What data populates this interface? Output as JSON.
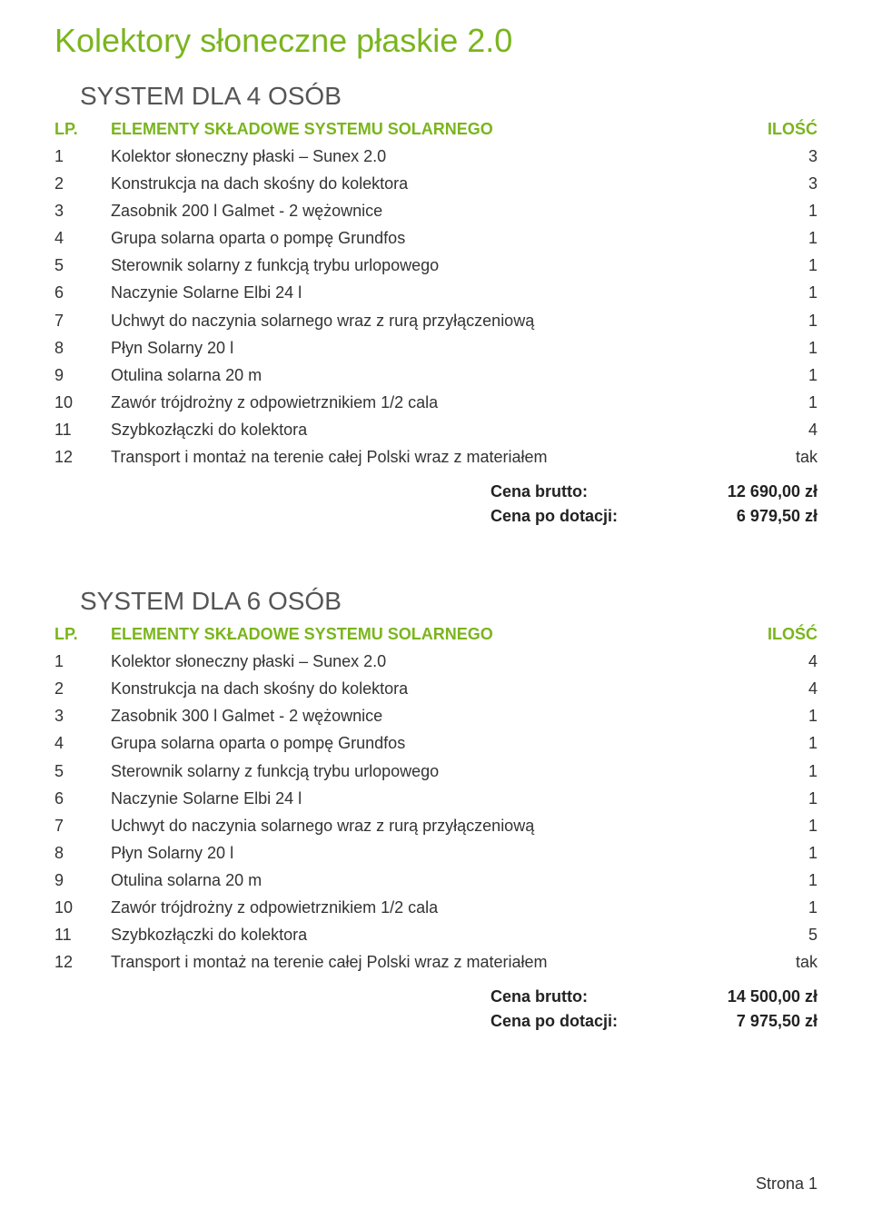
{
  "page": {
    "title": "Kolektory słoneczne płaskie 2.0",
    "footer": "Strona 1",
    "colors": {
      "accent": "#7ab51d",
      "text": "#333333"
    }
  },
  "sections": [
    {
      "title": "SYSTEM DLA 4 OSÓB",
      "header": {
        "lp": "LP.",
        "name": "ELEMENTY SKŁADOWE SYSTEMU SOLARNEGO",
        "qty": "ILOŚĆ"
      },
      "rows": [
        {
          "lp": "1",
          "name": "Kolektor słoneczny płaski – Sunex 2.0",
          "qty": "3"
        },
        {
          "lp": "2",
          "name": "Konstrukcja na dach skośny do kolektora",
          "qty": "3"
        },
        {
          "lp": "3",
          "name": "Zasobnik 200 l Galmet - 2 wężownice",
          "qty": "1"
        },
        {
          "lp": "4",
          "name": "Grupa solarna oparta o pompę Grundfos",
          "qty": "1"
        },
        {
          "lp": "5",
          "name": "Sterownik solarny z funkcją trybu urlopowego",
          "qty": "1"
        },
        {
          "lp": "6",
          "name": "Naczynie Solarne Elbi 24 l",
          "qty": "1"
        },
        {
          "lp": "7",
          "name": "Uchwyt do naczynia solarnego wraz z rurą przyłączeniową",
          "qty": "1"
        },
        {
          "lp": "8",
          "name": "Płyn Solarny 20 l",
          "qty": "1"
        },
        {
          "lp": "9",
          "name": "Otulina solarna 20 m",
          "qty": "1"
        },
        {
          "lp": "10",
          "name": "Zawór trójdrożny z odpowietrznikiem 1/2 cala",
          "qty": "1"
        },
        {
          "lp": "11",
          "name": "Szybkozłączki do kolektora",
          "qty": "4"
        },
        {
          "lp": "12",
          "name": "Transport i montaż na terenie całej Polski wraz z materiałem",
          "qty": "tak"
        }
      ],
      "prices": [
        {
          "label": "Cena brutto:",
          "value": "12 690,00 zł"
        },
        {
          "label": "Cena po dotacji:",
          "value": "6 979,50 zł"
        }
      ]
    },
    {
      "title": "SYSTEM DLA 6 OSÓB",
      "header": {
        "lp": "LP.",
        "name": "ELEMENTY SKŁADOWE SYSTEMU SOLARNEGO",
        "qty": "ILOŚĆ"
      },
      "rows": [
        {
          "lp": "1",
          "name": "Kolektor słoneczny płaski – Sunex 2.0",
          "qty": "4"
        },
        {
          "lp": "2",
          "name": "Konstrukcja na dach skośny do kolektora",
          "qty": "4"
        },
        {
          "lp": "3",
          "name": "Zasobnik 300 l Galmet - 2 wężownice",
          "qty": "1"
        },
        {
          "lp": "4",
          "name": "Grupa solarna oparta o pompę Grundfos",
          "qty": "1"
        },
        {
          "lp": "5",
          "name": "Sterownik solarny z funkcją trybu urlopowego",
          "qty": "1"
        },
        {
          "lp": "6",
          "name": "Naczynie Solarne Elbi 24 l",
          "qty": "1"
        },
        {
          "lp": "7",
          "name": "Uchwyt do naczynia solarnego wraz z rurą przyłączeniową",
          "qty": "1"
        },
        {
          "lp": "8",
          "name": "Płyn Solarny 20 l",
          "qty": "1"
        },
        {
          "lp": "9",
          "name": "Otulina solarna 20 m",
          "qty": "1"
        },
        {
          "lp": "10",
          "name": "Zawór trójdrożny z odpowietrznikiem 1/2 cala",
          "qty": "1"
        },
        {
          "lp": "11",
          "name": "Szybkozłączki do kolektora",
          "qty": "5"
        },
        {
          "lp": "12",
          "name": "Transport i montaż na terenie całej Polski wraz z materiałem",
          "qty": "tak"
        }
      ],
      "prices": [
        {
          "label": "Cena brutto:",
          "value": "14 500,00 zł"
        },
        {
          "label": "Cena po dotacji:",
          "value": "7 975,50 zł"
        }
      ]
    }
  ]
}
